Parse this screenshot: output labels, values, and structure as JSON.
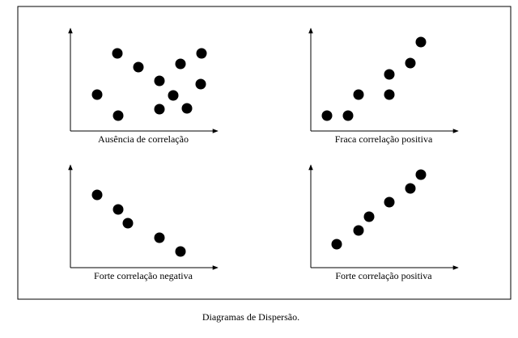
{
  "chart_data": [
    {
      "type": "scatter",
      "xlabel": "Ausência de correlação",
      "color": "#000000",
      "x": [
        33,
        58,
        59,
        84,
        110,
        110,
        127,
        136,
        144,
        162,
        161
      ],
      "y": [
        45,
        96,
        19,
        79,
        62,
        27,
        44,
        83,
        28,
        96,
        58
      ],
      "xlim": [
        0,
        180
      ],
      "ylim": [
        0,
        127
      ]
    },
    {
      "type": "scatter",
      "xlabel": "Fraca correlação positiva",
      "color": "#000000",
      "x": [
        20,
        46,
        59,
        97,
        97,
        123,
        136
      ],
      "y": [
        19,
        19,
        45,
        45,
        70,
        84,
        110
      ],
      "xlim": [
        0,
        180
      ],
      "ylim": [
        0,
        127
      ]
    },
    {
      "type": "scatter",
      "xlabel": "Forte correlação negativa",
      "color": "#000000",
      "x": [
        33,
        59,
        71,
        110,
        136
      ],
      "y": [
        90,
        72,
        55,
        37,
        20
      ],
      "xlim": [
        0,
        180
      ],
      "ylim": [
        0,
        127
      ]
    },
    {
      "type": "scatter",
      "xlabel": "Forte correlação positiva",
      "color": "#000000",
      "x": [
        32,
        59,
        72,
        97,
        123,
        136
      ],
      "y": [
        29,
        46,
        63,
        81,
        98,
        115
      ],
      "xlim": [
        0,
        180
      ],
      "ylim": [
        0,
        127
      ]
    }
  ],
  "caption": "Diagramas de Dispersão."
}
